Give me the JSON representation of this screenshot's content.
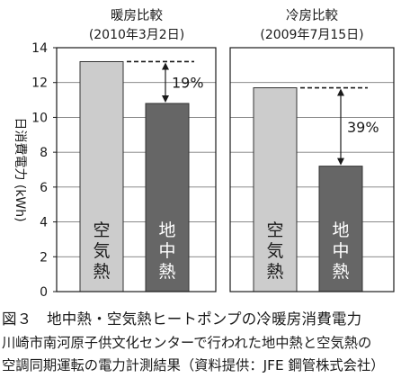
{
  "chart_data": [
    {
      "type": "bar",
      "title": "暖房比較",
      "subtitle": "(2010年3月2日)",
      "ylabel": "日消費電力 (kWh)",
      "ylim": [
        0,
        14
      ],
      "yticks": [
        0,
        2,
        4,
        6,
        8,
        10,
        12,
        14
      ],
      "grid": true,
      "categories": [
        "空気熱",
        "地中熱"
      ],
      "values": [
        13.2,
        10.8
      ],
      "annotation": "19%",
      "colors": [
        "#cccccc",
        "#666666"
      ]
    },
    {
      "type": "bar",
      "title": "冷房比較",
      "subtitle": "(2009年7月15日)",
      "ylim": [
        0,
        14
      ],
      "grid": true,
      "categories": [
        "空気熱",
        "地中熱"
      ],
      "values": [
        11.7,
        7.2
      ],
      "annotation": "39%",
      "colors": [
        "#cccccc",
        "#666666"
      ]
    }
  ],
  "caption": {
    "figure_title": "図３　地中熱・空気熱ヒートポンプの冷暖房消費電力",
    "line1": "川崎市南河原子供文化センターで行われた地中熱と空気熱の",
    "line2": "空調同期運転の電力計測結果（資料提供：JFE 鋼管株式会社）"
  }
}
